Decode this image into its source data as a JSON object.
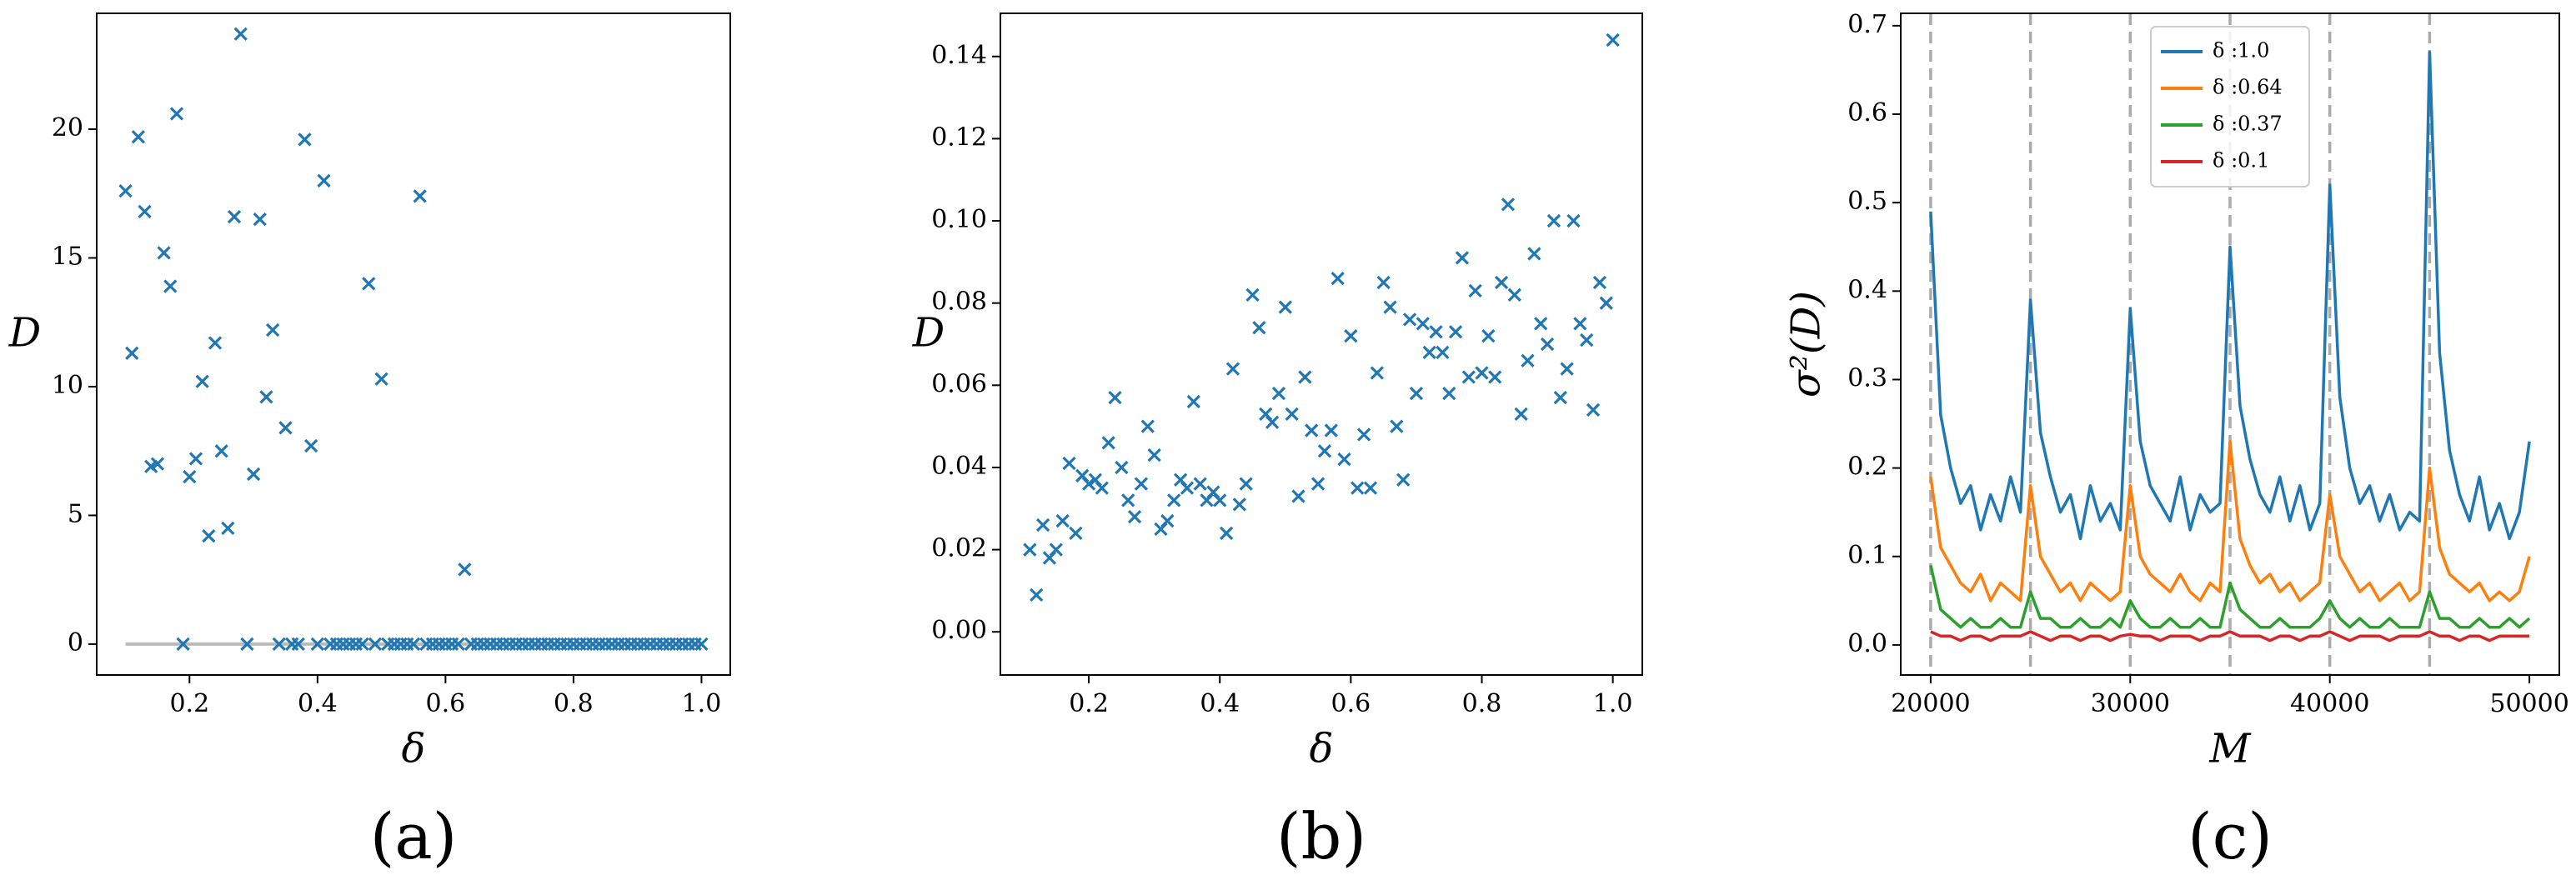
{
  "chart_data": [
    {
      "type": "scatter",
      "caption": "(a)",
      "xlabel": "δ",
      "ylabel": "D",
      "ylabel_rotation": 0,
      "color": "#1f77b4",
      "hline": 0,
      "hline_color": "#bbbbbb",
      "xlim": [
        0.055,
        1.045
      ],
      "ylim": [
        -1.2,
        24.5
      ],
      "xticks": [
        0.2,
        0.4,
        0.6,
        0.8,
        {
          "value": 1.0,
          "label": "1.0"
        }
      ],
      "yticks": [
        0,
        5,
        10,
        15,
        20
      ],
      "x": [
        0.1,
        0.11,
        0.12,
        0.13,
        0.14,
        0.15,
        0.16,
        0.17,
        0.18,
        0.19,
        0.2,
        0.21,
        0.22,
        0.23,
        0.24,
        0.25,
        0.26,
        0.27,
        0.28,
        0.29,
        0.3,
        0.31,
        0.32,
        0.33,
        0.34,
        0.35,
        0.36,
        0.37,
        0.38,
        0.39,
        0.4,
        0.41,
        0.42,
        0.43,
        0.44,
        0.45,
        0.46,
        0.47,
        0.48,
        0.49,
        0.5,
        0.51,
        0.52,
        0.53,
        0.54,
        0.55,
        0.56,
        0.57,
        0.58,
        0.59,
        0.6,
        0.61,
        0.62,
        0.63,
        0.64,
        0.65,
        0.66,
        0.67,
        0.68,
        0.69,
        0.7,
        0.71,
        0.72,
        0.73,
        0.74,
        0.75,
        0.76,
        0.77,
        0.78,
        0.79,
        0.8,
        0.81,
        0.82,
        0.83,
        0.84,
        0.85,
        0.86,
        0.87,
        0.88,
        0.89,
        0.9,
        0.91,
        0.92,
        0.93,
        0.94,
        0.95,
        0.96,
        0.97,
        0.98,
        0.99,
        1.0
      ],
      "values": [
        17.6,
        11.3,
        19.7,
        16.8,
        6.9,
        7.0,
        15.2,
        13.9,
        20.6,
        0,
        6.5,
        7.2,
        10.2,
        4.2,
        11.7,
        7.5,
        4.5,
        16.6,
        23.7,
        0,
        6.6,
        16.5,
        9.6,
        12.2,
        0,
        8.4,
        0,
        0,
        19.6,
        7.7,
        0,
        18.0,
        0,
        0,
        0,
        0,
        0,
        0,
        14.0,
        0,
        10.3,
        0,
        0,
        0,
        0,
        0,
        17.4,
        0,
        0,
        0,
        0,
        0,
        0,
        2.9,
        0,
        0,
        0,
        0,
        0,
        0,
        0,
        0,
        0,
        0,
        0,
        0,
        0,
        0,
        0,
        0,
        0,
        0,
        0,
        0,
        0,
        0,
        0,
        0,
        0,
        0,
        0,
        0,
        0,
        0,
        0,
        0,
        0,
        0,
        0,
        0,
        0
      ]
    },
    {
      "type": "scatter",
      "caption": "(b)",
      "xlabel": "δ",
      "ylabel": "D",
      "ylabel_rotation": 0,
      "color": "#1f77b4",
      "xlim": [
        0.065,
        1.045
      ],
      "ylim": [
        -0.0105,
        0.1505
      ],
      "xticks": [
        0.2,
        0.4,
        0.6,
        0.8,
        {
          "value": 1.0,
          "label": "1.0"
        }
      ],
      "yticks": [
        {
          "value": 0,
          "label": "0.00"
        },
        0.02,
        0.04,
        0.06,
        0.08,
        {
          "value": 0.1,
          "label": "0.10"
        },
        0.12,
        0.14
      ],
      "x": [
        0.11,
        0.12,
        0.13,
        0.14,
        0.15,
        0.16,
        0.17,
        0.18,
        0.19,
        0.2,
        0.21,
        0.22,
        0.23,
        0.24,
        0.25,
        0.26,
        0.27,
        0.28,
        0.29,
        0.3,
        0.31,
        0.32,
        0.33,
        0.34,
        0.35,
        0.36,
        0.37,
        0.38,
        0.39,
        0.4,
        0.41,
        0.42,
        0.43,
        0.44,
        0.45,
        0.46,
        0.47,
        0.48,
        0.49,
        0.5,
        0.51,
        0.52,
        0.53,
        0.54,
        0.55,
        0.56,
        0.57,
        0.58,
        0.59,
        0.6,
        0.61,
        0.62,
        0.63,
        0.64,
        0.65,
        0.66,
        0.67,
        0.68,
        0.69,
        0.7,
        0.71,
        0.72,
        0.73,
        0.74,
        0.75,
        0.76,
        0.77,
        0.78,
        0.79,
        0.8,
        0.81,
        0.82,
        0.83,
        0.84,
        0.85,
        0.86,
        0.87,
        0.88,
        0.89,
        0.9,
        0.91,
        0.92,
        0.93,
        0.94,
        0.95,
        0.96,
        0.97,
        0.98,
        0.99,
        1.0
      ],
      "values": [
        0.02,
        0.009,
        0.026,
        0.018,
        0.02,
        0.027,
        0.041,
        0.024,
        0.038,
        0.036,
        0.037,
        0.035,
        0.046,
        0.057,
        0.04,
        0.032,
        0.028,
        0.036,
        0.05,
        0.043,
        0.025,
        0.027,
        0.032,
        0.037,
        0.035,
        0.056,
        0.036,
        0.032,
        0.034,
        0.032,
        0.024,
        0.064,
        0.031,
        0.036,
        0.082,
        0.074,
        0.053,
        0.051,
        0.058,
        0.079,
        0.053,
        0.033,
        0.062,
        0.049,
        0.036,
        0.044,
        0.049,
        0.086,
        0.042,
        0.072,
        0.035,
        0.048,
        0.035,
        0.063,
        0.085,
        0.079,
        0.05,
        0.037,
        0.076,
        0.058,
        0.075,
        0.068,
        0.073,
        0.068,
        0.058,
        0.073,
        0.091,
        0.062,
        0.083,
        0.063,
        0.072,
        0.062,
        0.085,
        0.104,
        0.082,
        0.053,
        0.066,
        0.092,
        0.075,
        0.07,
        0.1,
        0.057,
        0.064,
        0.1,
        0.075,
        0.071,
        0.054,
        0.085,
        0.08,
        0.144
      ]
    },
    {
      "type": "line",
      "caption": "(c)",
      "xlabel": "M",
      "ylabel": "σ²(D)",
      "ylabel_rotation": -90,
      "legend": "upper center",
      "vlines": [
        20000,
        25000,
        30000,
        35000,
        40000,
        45000
      ],
      "vline_color": "#aaaaaa",
      "xlim": [
        18500,
        51500
      ],
      "ylim": [
        -0.034,
        0.714
      ],
      "xticks": [
        20000,
        30000,
        40000,
        50000
      ],
      "yticks": [
        {
          "value": 0,
          "label": "0.0"
        },
        0.1,
        0.2,
        0.3,
        0.4,
        0.5,
        0.6,
        0.7
      ],
      "x": [
        20000,
        20500,
        21000,
        21500,
        22000,
        22500,
        23000,
        23500,
        24000,
        24500,
        25000,
        25500,
        26000,
        26500,
        27000,
        27500,
        28000,
        28500,
        29000,
        29500,
        30000,
        30500,
        31000,
        31500,
        32000,
        32500,
        33000,
        33500,
        34000,
        34500,
        35000,
        35500,
        36000,
        36500,
        37000,
        37500,
        38000,
        38500,
        39000,
        39500,
        40000,
        40500,
        41000,
        41500,
        42000,
        42500,
        43000,
        43500,
        44000,
        44500,
        45000,
        45500,
        46000,
        46500,
        47000,
        47500,
        48000,
        48500,
        49000,
        49500,
        50000
      ],
      "series": [
        {
          "name": "δ :1.0",
          "color": "#1f77b4",
          "values": [
            0.49,
            0.26,
            0.2,
            0.16,
            0.18,
            0.13,
            0.17,
            0.14,
            0.19,
            0.15,
            0.39,
            0.24,
            0.19,
            0.15,
            0.17,
            0.12,
            0.18,
            0.14,
            0.16,
            0.13,
            0.38,
            0.23,
            0.18,
            0.16,
            0.14,
            0.19,
            0.13,
            0.17,
            0.15,
            0.16,
            0.45,
            0.27,
            0.21,
            0.17,
            0.15,
            0.19,
            0.14,
            0.18,
            0.13,
            0.16,
            0.52,
            0.28,
            0.2,
            0.16,
            0.18,
            0.14,
            0.17,
            0.13,
            0.15,
            0.14,
            0.67,
            0.33,
            0.22,
            0.17,
            0.14,
            0.19,
            0.13,
            0.16,
            0.12,
            0.15,
            0.23
          ]
        },
        {
          "name": "δ :0.64",
          "color": "#ff7f0e",
          "values": [
            0.19,
            0.11,
            0.09,
            0.07,
            0.06,
            0.08,
            0.05,
            0.07,
            0.06,
            0.05,
            0.18,
            0.1,
            0.08,
            0.06,
            0.07,
            0.05,
            0.07,
            0.06,
            0.05,
            0.06,
            0.18,
            0.1,
            0.08,
            0.07,
            0.06,
            0.08,
            0.06,
            0.05,
            0.07,
            0.06,
            0.23,
            0.12,
            0.09,
            0.07,
            0.08,
            0.06,
            0.07,
            0.05,
            0.06,
            0.07,
            0.17,
            0.1,
            0.08,
            0.06,
            0.07,
            0.05,
            0.06,
            0.07,
            0.05,
            0.06,
            0.2,
            0.11,
            0.08,
            0.07,
            0.06,
            0.07,
            0.05,
            0.06,
            0.05,
            0.06,
            0.1
          ]
        },
        {
          "name": "δ :0.37",
          "color": "#2ca02c",
          "values": [
            0.09,
            0.04,
            0.03,
            0.02,
            0.03,
            0.02,
            0.02,
            0.03,
            0.02,
            0.02,
            0.06,
            0.03,
            0.03,
            0.02,
            0.02,
            0.03,
            0.02,
            0.02,
            0.03,
            0.02,
            0.05,
            0.03,
            0.02,
            0.02,
            0.03,
            0.02,
            0.02,
            0.03,
            0.02,
            0.02,
            0.07,
            0.04,
            0.03,
            0.02,
            0.02,
            0.03,
            0.02,
            0.02,
            0.02,
            0.03,
            0.05,
            0.03,
            0.02,
            0.03,
            0.02,
            0.02,
            0.03,
            0.02,
            0.02,
            0.02,
            0.06,
            0.03,
            0.03,
            0.02,
            0.02,
            0.03,
            0.02,
            0.02,
            0.03,
            0.02,
            0.03
          ]
        },
        {
          "name": "δ :0.1",
          "color": "#d62728",
          "values": [
            0.015,
            0.01,
            0.01,
            0.005,
            0.01,
            0.01,
            0.005,
            0.01,
            0.01,
            0.01,
            0.015,
            0.01,
            0.005,
            0.01,
            0.01,
            0.005,
            0.01,
            0.01,
            0.005,
            0.01,
            0.012,
            0.01,
            0.01,
            0.005,
            0.01,
            0.01,
            0.01,
            0.005,
            0.01,
            0.01,
            0.015,
            0.01,
            0.01,
            0.01,
            0.005,
            0.01,
            0.01,
            0.005,
            0.01,
            0.01,
            0.015,
            0.01,
            0.005,
            0.01,
            0.01,
            0.01,
            0.005,
            0.01,
            0.01,
            0.01,
            0.015,
            0.01,
            0.01,
            0.005,
            0.01,
            0.01,
            0.005,
            0.01,
            0.01,
            0.01,
            0.01
          ]
        }
      ]
    }
  ]
}
